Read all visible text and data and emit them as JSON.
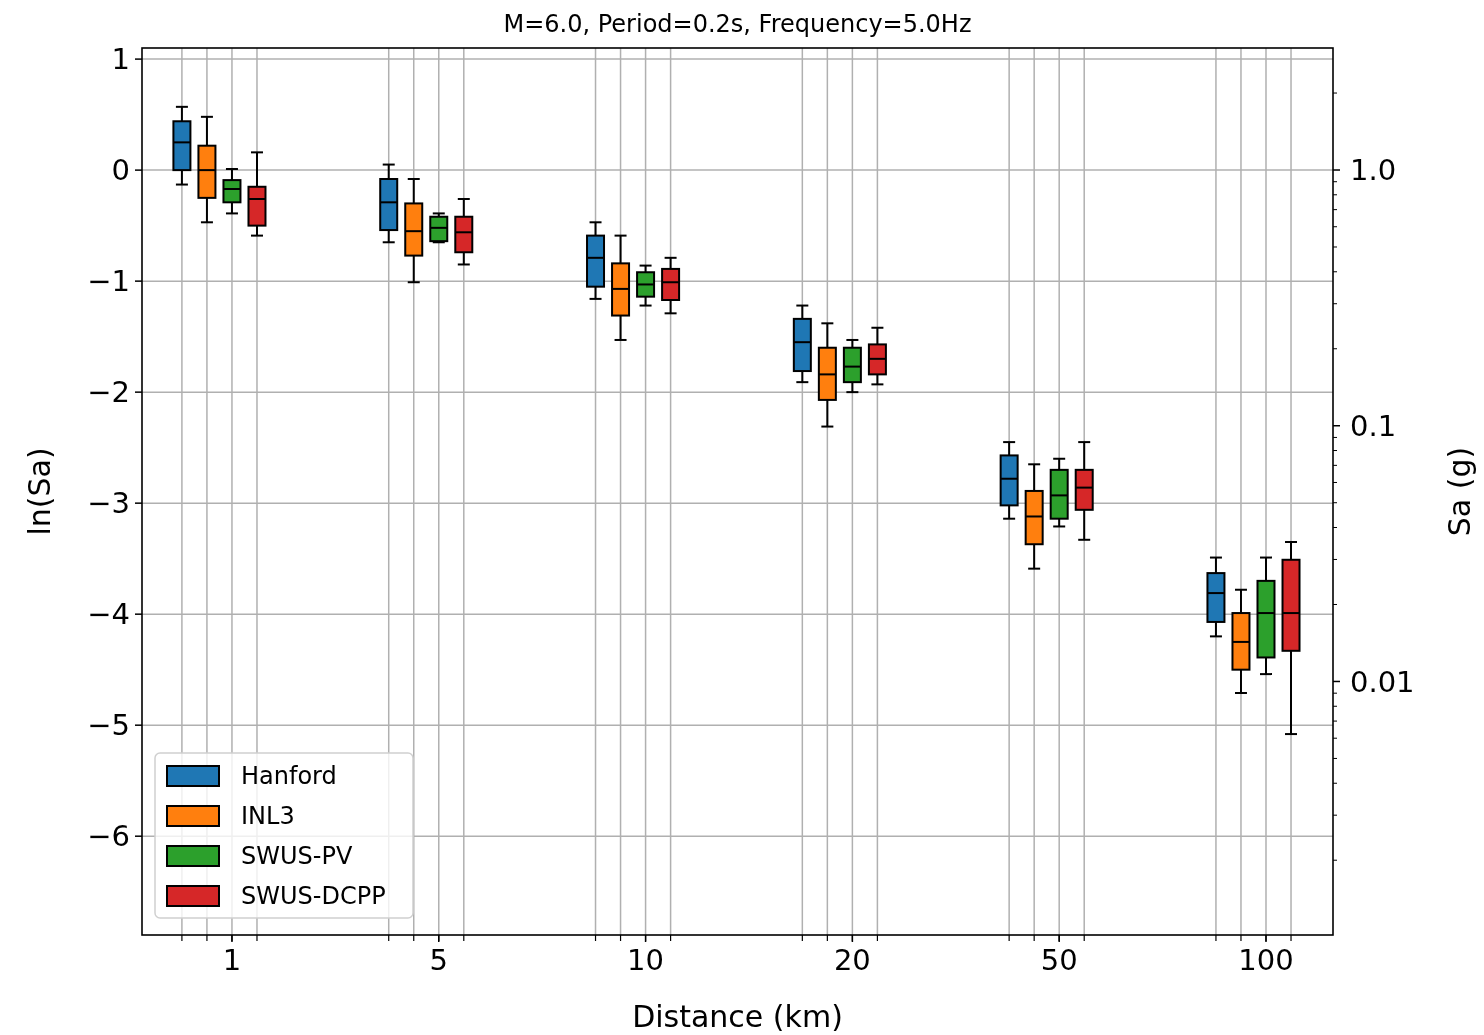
{
  "chart_data": {
    "type": "box",
    "title": "M=6.0, Period=0.2s, Frequency=5.0Hz",
    "xlabel": "Distance (km)",
    "ylabel": "ln(Sa)",
    "y2label": "Sa (g)",
    "categories": [
      "1",
      "5",
      "10",
      "20",
      "50",
      "100"
    ],
    "ylim": [
      -6.89,
      1.1
    ],
    "yticks": [
      {
        "value": -6,
        "label": "−6"
      },
      {
        "value": -5,
        "label": "−5"
      },
      {
        "value": -4,
        "label": "−4"
      },
      {
        "value": -3,
        "label": "−3"
      },
      {
        "value": -2,
        "label": "−2"
      },
      {
        "value": -1,
        "label": "−1"
      },
      0,
      1
    ],
    "y2lim": [
      0.00102,
      3.0
    ],
    "y2ticks": [
      {
        "value": 0.002,
        "label": null
      },
      {
        "value": 0.003,
        "label": null
      },
      {
        "value": 0.004,
        "label": null
      },
      {
        "value": 0.005,
        "label": null
      },
      {
        "value": 0.006,
        "label": null
      },
      {
        "value": 0.007,
        "label": null
      },
      {
        "value": 0.008,
        "label": null
      },
      {
        "value": 0.009,
        "label": null
      },
      0.01,
      {
        "value": 0.02,
        "label": null
      },
      {
        "value": 0.03,
        "label": null
      },
      {
        "value": 0.04,
        "label": null
      },
      {
        "value": 0.05,
        "label": null
      },
      {
        "value": 0.06,
        "label": null
      },
      {
        "value": 0.07,
        "label": null
      },
      {
        "value": 0.08,
        "label": null
      },
      {
        "value": 0.09,
        "label": null
      },
      0.1,
      {
        "value": 0.2,
        "label": null
      },
      {
        "value": 0.3,
        "label": null
      },
      {
        "value": 0.4,
        "label": null
      },
      {
        "value": 0.5,
        "label": null
      },
      {
        "value": 0.6,
        "label": null
      },
      {
        "value": 0.7,
        "label": null
      },
      {
        "value": 0.8,
        "label": null
      },
      {
        "value": 0.9,
        "label": null
      },
      {
        "value": 1,
        "label": "1.0"
      },
      {
        "value": 2,
        "label": null
      }
    ],
    "log": "y2",
    "grid": true,
    "legend": "bottom left",
    "series": [
      {
        "name": "Hanford",
        "color": "#1f77b4",
        "boxes": [
          {
            "low": -0.13,
            "q1": 0.0,
            "median": 0.25,
            "q3": 0.44,
            "high": 0.57
          },
          {
            "low": -0.65,
            "q1": -0.54,
            "median": -0.29,
            "q3": -0.08,
            "high": 0.05
          },
          {
            "low": -1.16,
            "q1": -1.05,
            "median": -0.79,
            "q3": -0.59,
            "high": -0.47
          },
          {
            "low": -1.91,
            "q1": -1.81,
            "median": -1.55,
            "q3": -1.34,
            "high": -1.22
          },
          {
            "low": -3.14,
            "q1": -3.02,
            "median": -2.78,
            "q3": -2.57,
            "high": -2.45
          },
          {
            "low": -4.2,
            "q1": -4.07,
            "median": -3.81,
            "q3": -3.63,
            "high": -3.49
          }
        ]
      },
      {
        "name": "INL3",
        "color": "#ff7f0e",
        "boxes": [
          {
            "low": -0.47,
            "q1": -0.25,
            "median": 0.0,
            "q3": 0.22,
            "high": 0.48
          },
          {
            "low": -1.01,
            "q1": -0.77,
            "median": -0.55,
            "q3": -0.3,
            "high": -0.08
          },
          {
            "low": -1.53,
            "q1": -1.31,
            "median": -1.07,
            "q3": -0.84,
            "high": -0.59
          },
          {
            "low": -2.31,
            "q1": -2.07,
            "median": -1.84,
            "q3": -1.6,
            "high": -1.38
          },
          {
            "low": -3.59,
            "q1": -3.37,
            "median": -3.12,
            "q3": -2.89,
            "high": -2.65
          },
          {
            "low": -4.71,
            "q1": -4.5,
            "median": -4.25,
            "q3": -3.99,
            "high": -3.78
          }
        ]
      },
      {
        "name": "SWUS-PV",
        "color": "#2ca02c",
        "boxes": [
          {
            "low": -0.39,
            "q1": -0.29,
            "median": -0.17,
            "q3": -0.09,
            "high": 0.01
          },
          {
            "low": -0.65,
            "q1": -0.64,
            "median": -0.52,
            "q3": -0.42,
            "high": -0.39
          },
          {
            "low": -1.22,
            "q1": -1.14,
            "median": -1.03,
            "q3": -0.92,
            "high": -0.86
          },
          {
            "low": -2.0,
            "q1": -1.91,
            "median": -1.77,
            "q3": -1.6,
            "high": -1.53
          },
          {
            "low": -3.21,
            "q1": -3.14,
            "median": -2.93,
            "q3": -2.7,
            "high": -2.6
          },
          {
            "low": -4.54,
            "q1": -4.39,
            "median": -3.99,
            "q3": -3.7,
            "high": -3.49
          }
        ]
      },
      {
        "name": "SWUS-DCPP",
        "color": "#d62728",
        "boxes": [
          {
            "low": -0.59,
            "q1": -0.5,
            "median": -0.26,
            "q3": -0.15,
            "high": 0.16
          },
          {
            "low": -0.85,
            "q1": -0.74,
            "median": -0.56,
            "q3": -0.42,
            "high": -0.26
          },
          {
            "low": -1.29,
            "q1": -1.17,
            "median": -1.01,
            "q3": -0.89,
            "high": -0.79
          },
          {
            "low": -1.93,
            "q1": -1.84,
            "median": -1.7,
            "q3": -1.57,
            "high": -1.42
          },
          {
            "low": -3.33,
            "q1": -3.06,
            "median": -2.86,
            "q3": -2.7,
            "high": -2.45
          },
          {
            "low": -5.08,
            "q1": -4.33,
            "median": -3.99,
            "q3": -3.51,
            "high": -3.35
          }
        ]
      }
    ]
  }
}
